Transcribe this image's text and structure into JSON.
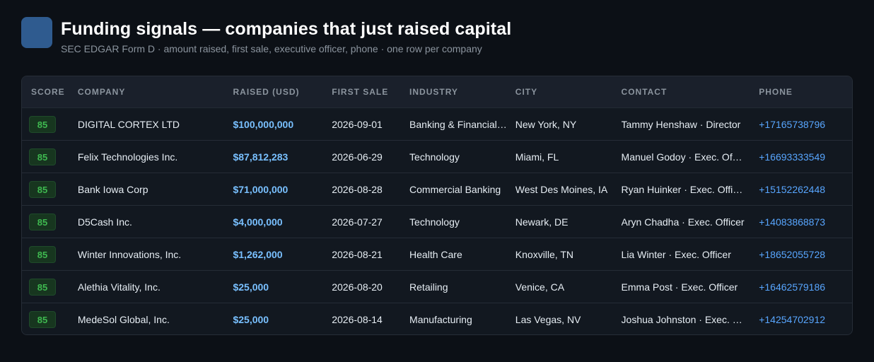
{
  "header": {
    "title": "Funding signals — companies that just raised capital",
    "subtitle": "SEC EDGAR Form D · amount raised, first sale, executive officer, phone · one row per company"
  },
  "columns": {
    "score": "SCORE",
    "company": "COMPANY",
    "raised": "RAISED (USD)",
    "first_sale": "FIRST SALE",
    "industry": "INDUSTRY",
    "city": "CITY",
    "contact": "CONTACT",
    "phone": "PHONE"
  },
  "rows": [
    {
      "score": "85",
      "company": "DIGITAL CORTEX LTD",
      "raised": "$100,000,000",
      "first_sale": "2026-09-01",
      "industry": "Banking & Financial Services",
      "city": "New York, NY",
      "contact": "Tammy Henshaw · Director",
      "phone": "+17165738796"
    },
    {
      "score": "85",
      "company": "Felix Technologies Inc.",
      "raised": "$87,812,283",
      "first_sale": "2026-06-29",
      "industry": "Technology",
      "city": "Miami, FL",
      "contact": "Manuel Godoy · Exec. Officer",
      "phone": "+16693333549"
    },
    {
      "score": "85",
      "company": "Bank Iowa Corp",
      "raised": "$71,000,000",
      "first_sale": "2026-08-28",
      "industry": "Commercial Banking",
      "city": "West Des Moines, IA",
      "contact": "Ryan Huinker · Exec. Officer",
      "phone": "+15152262448"
    },
    {
      "score": "85",
      "company": "D5Cash Inc.",
      "raised": "$4,000,000",
      "first_sale": "2026-07-27",
      "industry": "Technology",
      "city": "Newark, DE",
      "contact": "Aryn Chadha · Exec. Officer",
      "phone": "+14083868873"
    },
    {
      "score": "85",
      "company": "Winter Innovations, Inc.",
      "raised": "$1,262,000",
      "first_sale": "2026-08-21",
      "industry": "Health Care",
      "city": "Knoxville, TN",
      "contact": "Lia Winter · Exec. Officer",
      "phone": "+18652055728"
    },
    {
      "score": "85",
      "company": "Alethia Vitality, Inc.",
      "raised": "$25,000",
      "first_sale": "2026-08-20",
      "industry": "Retailing",
      "city": "Venice, CA",
      "contact": "Emma Post · Exec. Officer",
      "phone": "+16462579186"
    },
    {
      "score": "85",
      "company": "MedeSol Global, Inc.",
      "raised": "$25,000",
      "first_sale": "2026-08-14",
      "industry": "Manufacturing",
      "city": "Las Vegas, NV",
      "contact": "Joshua Johnston · Exec. Officer",
      "phone": "+14254702912"
    }
  ]
}
